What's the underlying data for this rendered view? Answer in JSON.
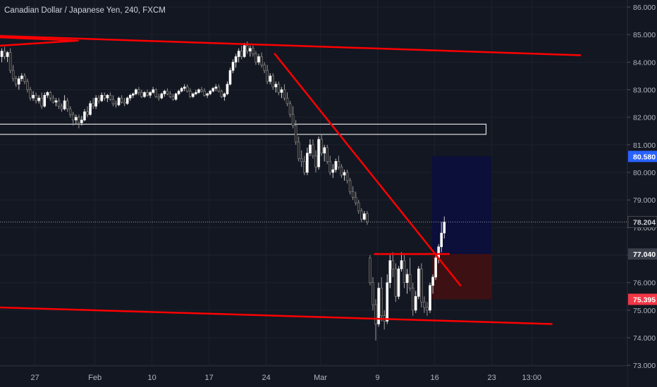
{
  "legend": {
    "title": "Canadian Dollar / Japanese Yen, 240, FXCM"
  },
  "colors": {
    "background": "#131722",
    "grid": "#1e222d",
    "axis_text": "#b2b5be",
    "bull": "#ffffff",
    "bear": "#222222",
    "drawing": "#ff0000",
    "target_zone": "#0b0f3a",
    "stop_zone": "#3d1014",
    "last_price_line": "#c8c8c8",
    "target_badge": "#2962ff",
    "entry_badge": "#3a3e4a",
    "stop_badge": "#f23645"
  },
  "chart_data": {
    "type": "candlestick",
    "title": "Canadian Dollar / Japanese Yen, 240, FXCM",
    "ylim": [
      72.8,
      86.3
    ],
    "y_ticks": [
      73.0,
      74.0,
      75.0,
      76.0,
      77.0,
      78.0,
      79.0,
      80.0,
      81.0,
      82.0,
      83.0,
      84.0,
      85.0,
      86.0
    ],
    "y_tick_labels": [
      "73.000",
      "74.000",
      "75.000",
      "76.000",
      "77.000",
      "78.000",
      "79.000",
      "80.000",
      "81.000",
      "82.000",
      "83.000",
      "84.000",
      "85.000",
      "86.000"
    ],
    "x_ticks": [
      {
        "label": "27",
        "bar": 12
      },
      {
        "label": "Feb",
        "bar": 33
      },
      {
        "label": "10",
        "bar": 53
      },
      {
        "label": "17",
        "bar": 73
      },
      {
        "label": "24",
        "bar": 93
      },
      {
        "label": "Mar",
        "bar": 112
      },
      {
        "label": "9",
        "bar": 132
      },
      {
        "label": "16",
        "bar": 152
      },
      {
        "label": "23",
        "bar": 172
      },
      {
        "label": "13:00",
        "bar": 186
      }
    ],
    "price_labels": [
      {
        "name": "target",
        "value": 80.58,
        "text": "80.580"
      },
      {
        "name": "last",
        "value": 78.204,
        "text": "78.204"
      },
      {
        "name": "entry",
        "value": 77.04,
        "text": "77.040"
      },
      {
        "name": "stop",
        "value": 75.395,
        "text": "75.395"
      }
    ],
    "series": [
      {
        "ohlc": [
          [
            84.2,
            84.5,
            84.0,
            84.4
          ],
          [
            84.4,
            84.55,
            84.1,
            84.2
          ],
          [
            84.2,
            84.4,
            84.0,
            84.35
          ],
          [
            84.35,
            84.5,
            83.6,
            83.7
          ],
          [
            83.7,
            83.9,
            83.3,
            83.4
          ],
          [
            83.4,
            83.5,
            83.1,
            83.2
          ],
          [
            83.2,
            83.5,
            83.0,
            83.4
          ],
          [
            83.4,
            83.6,
            83.3,
            83.5
          ],
          [
            83.5,
            83.6,
            83.2,
            83.3
          ],
          [
            83.3,
            83.4,
            82.9,
            83.0
          ],
          [
            83.0,
            83.1,
            82.6,
            82.7
          ],
          [
            82.7,
            82.95,
            82.6,
            82.8
          ],
          [
            82.8,
            82.9,
            82.5,
            82.6
          ],
          [
            82.6,
            82.8,
            82.5,
            82.7
          ],
          [
            82.7,
            82.9,
            82.3,
            82.4
          ],
          [
            82.4,
            82.9,
            82.35,
            82.8
          ],
          [
            82.8,
            82.95,
            82.7,
            82.9
          ],
          [
            82.9,
            82.95,
            82.6,
            82.7
          ],
          [
            82.7,
            82.8,
            82.5,
            82.55
          ],
          [
            82.55,
            82.7,
            82.4,
            82.6
          ],
          [
            82.6,
            82.7,
            82.3,
            82.4
          ],
          [
            82.4,
            82.5,
            82.2,
            82.3
          ],
          [
            82.3,
            82.8,
            82.25,
            82.6
          ],
          [
            82.6,
            82.7,
            82.2,
            82.3
          ],
          [
            82.3,
            82.4,
            82.0,
            82.1
          ],
          [
            82.1,
            82.2,
            81.7,
            81.9
          ],
          [
            81.9,
            82.1,
            81.75,
            82.0
          ],
          [
            82.0,
            82.1,
            81.6,
            81.8
          ],
          [
            81.8,
            82.05,
            81.7,
            81.9
          ],
          [
            81.9,
            82.3,
            81.85,
            82.2
          ],
          [
            82.2,
            82.4,
            82.0,
            82.1
          ],
          [
            82.1,
            82.6,
            82.05,
            82.5
          ],
          [
            82.5,
            82.7,
            82.3,
            82.4
          ],
          [
            82.4,
            82.8,
            82.3,
            82.7
          ],
          [
            82.7,
            82.8,
            82.5,
            82.6
          ],
          [
            82.6,
            82.9,
            82.55,
            82.8
          ],
          [
            82.8,
            82.9,
            82.6,
            82.7
          ],
          [
            82.7,
            82.85,
            82.55,
            82.8
          ],
          [
            82.8,
            82.9,
            82.6,
            82.65
          ],
          [
            82.65,
            82.8,
            82.4,
            82.5
          ],
          [
            82.5,
            82.6,
            82.35,
            82.45
          ],
          [
            82.45,
            82.75,
            82.4,
            82.7
          ],
          [
            82.7,
            82.8,
            82.5,
            82.55
          ],
          [
            82.55,
            82.7,
            82.4,
            82.5
          ],
          [
            82.5,
            82.75,
            82.45,
            82.7
          ],
          [
            82.7,
            82.85,
            82.6,
            82.8
          ],
          [
            82.8,
            82.9,
            82.7,
            82.85
          ],
          [
            82.85,
            83.05,
            82.8,
            83.0
          ],
          [
            83.0,
            83.1,
            82.8,
            82.9
          ],
          [
            82.9,
            83.0,
            82.7,
            82.75
          ],
          [
            82.75,
            82.95,
            82.7,
            82.9
          ],
          [
            82.9,
            83.0,
            82.75,
            82.8
          ],
          [
            82.8,
            82.95,
            82.7,
            82.9
          ],
          [
            82.9,
            83.1,
            82.85,
            83.0
          ],
          [
            83.0,
            83.05,
            82.7,
            82.75
          ],
          [
            82.75,
            82.85,
            82.6,
            82.7
          ],
          [
            82.7,
            82.9,
            82.65,
            82.85
          ],
          [
            82.85,
            83.0,
            82.75,
            82.95
          ],
          [
            82.95,
            83.05,
            82.8,
            82.85
          ],
          [
            82.85,
            82.95,
            82.7,
            82.75
          ],
          [
            82.75,
            82.85,
            82.6,
            82.65
          ],
          [
            82.65,
            82.9,
            82.6,
            82.85
          ],
          [
            82.85,
            83.0,
            82.8,
            82.95
          ],
          [
            82.95,
            83.1,
            82.9,
            83.05
          ],
          [
            83.05,
            83.2,
            82.95,
            83.1
          ],
          [
            83.1,
            83.2,
            82.9,
            82.95
          ],
          [
            82.95,
            83.05,
            82.7,
            82.75
          ],
          [
            82.75,
            82.9,
            82.7,
            82.85
          ],
          [
            82.85,
            83.0,
            82.8,
            82.9
          ],
          [
            82.9,
            83.05,
            82.85,
            83.0
          ],
          [
            83.0,
            83.1,
            82.9,
            82.95
          ],
          [
            82.95,
            83.05,
            82.75,
            82.8
          ],
          [
            82.8,
            82.9,
            82.7,
            82.85
          ],
          [
            82.85,
            83.0,
            82.8,
            82.95
          ],
          [
            82.95,
            83.1,
            82.9,
            83.05
          ],
          [
            83.05,
            83.2,
            82.95,
            83.1
          ],
          [
            83.1,
            83.2,
            82.9,
            82.95
          ],
          [
            82.95,
            83.0,
            82.7,
            82.75
          ],
          [
            82.75,
            82.9,
            82.6,
            82.85
          ],
          [
            82.85,
            83.3,
            82.8,
            83.2
          ],
          [
            83.2,
            83.8,
            83.15,
            83.7
          ],
          [
            83.7,
            84.1,
            83.6,
            84.0
          ],
          [
            84.0,
            84.3,
            83.8,
            84.2
          ],
          [
            84.2,
            84.5,
            84.0,
            84.4
          ],
          [
            84.4,
            84.6,
            84.1,
            84.2
          ],
          [
            84.2,
            84.7,
            84.15,
            84.6
          ],
          [
            84.6,
            84.75,
            84.3,
            84.4
          ],
          [
            84.4,
            84.6,
            84.2,
            84.5
          ],
          [
            84.5,
            84.6,
            84.2,
            84.3
          ],
          [
            84.3,
            84.4,
            83.9,
            84.0
          ],
          [
            84.0,
            84.3,
            83.9,
            84.2
          ],
          [
            84.2,
            84.35,
            83.8,
            83.9
          ],
          [
            83.9,
            84.0,
            83.6,
            83.7
          ],
          [
            83.7,
            83.9,
            83.2,
            83.3
          ],
          [
            83.3,
            83.6,
            83.2,
            83.5
          ],
          [
            83.5,
            83.6,
            83.0,
            83.1
          ],
          [
            83.1,
            83.3,
            82.9,
            83.2
          ],
          [
            83.2,
            83.3,
            82.8,
            82.9
          ],
          [
            82.9,
            83.1,
            82.7,
            83.0
          ],
          [
            83.0,
            83.2,
            82.6,
            82.7
          ],
          [
            82.7,
            82.9,
            82.4,
            82.5
          ],
          [
            82.5,
            82.6,
            82.0,
            82.1
          ],
          [
            82.1,
            82.4,
            81.6,
            81.7
          ],
          [
            81.7,
            81.9,
            81.0,
            81.1
          ],
          [
            81.1,
            81.3,
            80.4,
            80.5
          ],
          [
            80.5,
            80.8,
            80.2,
            80.4
          ],
          [
            80.4,
            80.6,
            79.9,
            80.0
          ],
          [
            80.0,
            80.9,
            79.9,
            80.7
          ],
          [
            80.7,
            81.2,
            80.6,
            81.0
          ],
          [
            81.0,
            81.2,
            80.5,
            80.6
          ],
          [
            80.6,
            80.8,
            80.0,
            80.2
          ],
          [
            80.2,
            81.3,
            80.1,
            81.2
          ],
          [
            81.2,
            81.4,
            80.6,
            80.7
          ],
          [
            80.7,
            81.0,
            80.4,
            80.9
          ],
          [
            80.9,
            81.0,
            80.3,
            80.4
          ],
          [
            80.4,
            80.6,
            79.9,
            80.0
          ],
          [
            80.0,
            80.3,
            79.8,
            80.1
          ],
          [
            80.1,
            80.5,
            80.0,
            80.4
          ],
          [
            80.4,
            80.6,
            80.1,
            80.2
          ],
          [
            80.2,
            80.3,
            79.8,
            79.9
          ],
          [
            79.9,
            80.1,
            79.7,
            80.0
          ],
          [
            80.0,
            80.1,
            79.6,
            79.7
          ],
          [
            79.7,
            79.8,
            79.2,
            79.3
          ],
          [
            79.3,
            79.5,
            79.0,
            79.1
          ],
          [
            79.1,
            79.3,
            78.8,
            78.9
          ],
          [
            78.9,
            79.0,
            78.5,
            78.6
          ],
          [
            78.6,
            78.7,
            78.2,
            78.3
          ],
          [
            78.3,
            78.6,
            78.25,
            78.5
          ],
          [
            78.5,
            78.6,
            78.1,
            78.2
          ],
          [
            76.9,
            77.0,
            75.9,
            76.0
          ],
          [
            76.0,
            76.2,
            75.0,
            75.2
          ],
          [
            75.2,
            75.4,
            73.9,
            74.5
          ],
          [
            74.5,
            76.0,
            74.4,
            75.8
          ],
          [
            75.8,
            76.2,
            74.6,
            74.8
          ],
          [
            74.8,
            75.0,
            74.3,
            74.6
          ],
          [
            74.6,
            76.3,
            74.5,
            76.0
          ],
          [
            76.0,
            77.0,
            75.8,
            76.8
          ],
          [
            76.8,
            77.1,
            76.2,
            76.5
          ],
          [
            76.5,
            76.7,
            75.3,
            75.5
          ],
          [
            75.5,
            76.6,
            75.4,
            76.5
          ],
          [
            76.5,
            77.1,
            76.4,
            76.8
          ],
          [
            76.8,
            77.0,
            75.8,
            76.0
          ],
          [
            76.0,
            76.5,
            75.6,
            76.3
          ],
          [
            76.3,
            76.9,
            75.7,
            75.8
          ],
          [
            75.8,
            76.0,
            74.8,
            75.0
          ],
          [
            75.0,
            75.7,
            74.9,
            75.5
          ],
          [
            75.5,
            76.6,
            75.4,
            76.5
          ],
          [
            76.5,
            76.7,
            75.1,
            75.3
          ],
          [
            75.3,
            75.5,
            74.9,
            75.1
          ],
          [
            75.1,
            75.3,
            74.8,
            75.0
          ],
          [
            75.0,
            76.0,
            74.9,
            75.9
          ],
          [
            75.9,
            76.3,
            75.6,
            76.2
          ],
          [
            76.2,
            77.0,
            76.1,
            76.9
          ],
          [
            76.9,
            77.4,
            76.7,
            77.3
          ],
          [
            77.3,
            78.2,
            77.1,
            77.8
          ],
          [
            77.8,
            78.4,
            77.6,
            78.2
          ]
        ]
      }
    ]
  },
  "drawings": [
    {
      "name": "upper-trendline",
      "from": {
        "bar": 0,
        "price": 84.95
      },
      "to": {
        "bar": 203,
        "price": 84.25
      }
    },
    {
      "name": "pennant-line-1",
      "from": {
        "bar": 0,
        "price": 84.9
      },
      "to": {
        "bar": 27,
        "price": 84.78
      }
    },
    {
      "name": "pennant-line-2",
      "from": {
        "bar": 0,
        "price": 84.6
      },
      "to": {
        "bar": 27,
        "price": 84.78
      }
    },
    {
      "name": "lower-trendline",
      "from": {
        "bar": 0,
        "price": 75.1
      },
      "to": {
        "bar": 193,
        "price": 74.5
      }
    },
    {
      "name": "descending-trendline",
      "from": {
        "bar": 96,
        "price": 84.3
      },
      "to": {
        "bar": 161,
        "price": 75.9
      }
    },
    {
      "name": "breakout-level",
      "from": {
        "bar": 131,
        "price": 77.04
      },
      "to": {
        "bar": 157,
        "price": 77.04
      }
    }
  ],
  "support_box": {
    "from_bar": 0,
    "to_bar": 170,
    "price_top": 81.75,
    "price_bottom": 81.38
  },
  "position": {
    "from_bar": 151,
    "to_bar": 172,
    "entry": 77.04,
    "target": 80.58,
    "stop": 75.395
  }
}
